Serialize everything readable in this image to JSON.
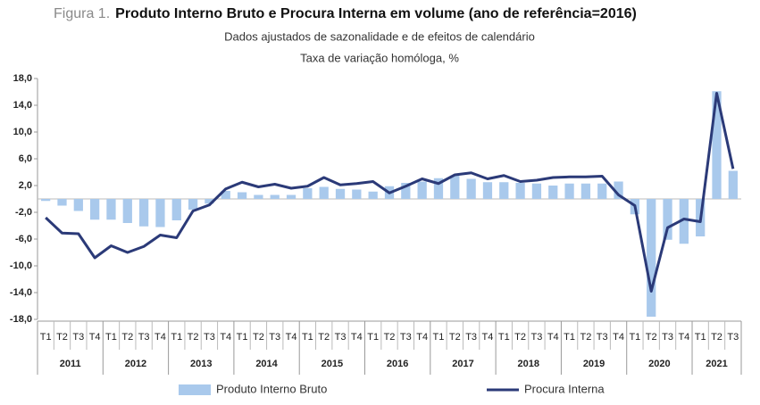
{
  "chart_data": {
    "type": "bar-line",
    "title_prefix": "Figura 1.",
    "title": "Produto Interno Bruto e Procura Interna em volume (ano de referência=2016)",
    "subtitle": "Dados ajustados de sazonalidade  e de efeitos de calendário",
    "subtitle2": "Taxa de variação homóloga, %",
    "year_groups": [
      {
        "label": "2011",
        "quarters": [
          "T1",
          "T2",
          "T3",
          "T4"
        ]
      },
      {
        "label": "2012",
        "quarters": [
          "T1",
          "T2",
          "T3",
          "T4"
        ]
      },
      {
        "label": "2013",
        "quarters": [
          "T1",
          "T2",
          "T3",
          "T4"
        ]
      },
      {
        "label": "2014",
        "quarters": [
          "T1",
          "T2",
          "T3",
          "T4"
        ]
      },
      {
        "label": "2015",
        "quarters": [
          "T1",
          "T2",
          "T3",
          "T4"
        ]
      },
      {
        "label": "2016",
        "quarters": [
          "T1",
          "T2",
          "T3",
          "T4"
        ]
      },
      {
        "label": "2017",
        "quarters": [
          "T1",
          "T2",
          "T3",
          "T4"
        ]
      },
      {
        "label": "2018",
        "quarters": [
          "T1",
          "T2",
          "T3",
          "T4"
        ]
      },
      {
        "label": "2019",
        "quarters": [
          "T1",
          "T2",
          "T3",
          "T4"
        ]
      },
      {
        "label": "2020",
        "quarters": [
          "T1",
          "T2",
          "T3",
          "T4"
        ]
      },
      {
        "label": "2021",
        "quarters": [
          "T1",
          "T2",
          "T3"
        ]
      }
    ],
    "series": [
      {
        "name": "Produto Interno Bruto",
        "type": "bar",
        "color": "#a9c9ec",
        "values": [
          -0.3,
          -1.0,
          -1.8,
          -3.1,
          -3.1,
          -3.6,
          -4.1,
          -4.2,
          -3.2,
          -1.6,
          -0.7,
          1.2,
          1.0,
          0.6,
          0.6,
          0.6,
          1.6,
          1.8,
          1.5,
          1.4,
          1.1,
          1.9,
          2.4,
          2.6,
          3.1,
          3.5,
          3.0,
          2.5,
          2.5,
          2.4,
          2.3,
          2.0,
          2.3,
          2.3,
          2.3,
          2.6,
          -2.3,
          -17.6,
          -6.1,
          -6.7,
          -5.6,
          16.1,
          4.2
        ]
      },
      {
        "name": "Procura Interna",
        "type": "line",
        "color": "#2b3a78",
        "values": [
          -2.8,
          -5.1,
          -5.2,
          -8.8,
          -7.0,
          -8.0,
          -7.1,
          -5.4,
          -5.8,
          -1.8,
          -0.9,
          1.5,
          2.5,
          1.8,
          2.2,
          1.6,
          1.9,
          3.2,
          2.1,
          2.3,
          2.6,
          0.9,
          1.9,
          3.0,
          2.3,
          3.6,
          3.9,
          3.0,
          3.5,
          2.6,
          2.8,
          3.2,
          3.3,
          3.3,
          3.4,
          0.6,
          -1.0,
          -13.8,
          -4.3,
          -3.0,
          -3.4,
          15.8,
          4.5
        ]
      }
    ],
    "ylim": [
      -18,
      18
    ],
    "yticks": [
      {
        "value": -18,
        "label": "-18,0"
      },
      {
        "value": -14,
        "label": "-14,0"
      },
      {
        "value": -10,
        "label": "-10,0"
      },
      {
        "value": -6,
        "label": "-6,0"
      },
      {
        "value": -2,
        "label": "-2,0"
      },
      {
        "value": 2,
        "label": "2,0"
      },
      {
        "value": 6,
        "label": "6,0"
      },
      {
        "value": 10,
        "label": "10,0"
      },
      {
        "value": 14,
        "label": "14,0"
      },
      {
        "value": 18,
        "label": "18,0"
      }
    ],
    "grid": false,
    "legend": "bottom"
  }
}
